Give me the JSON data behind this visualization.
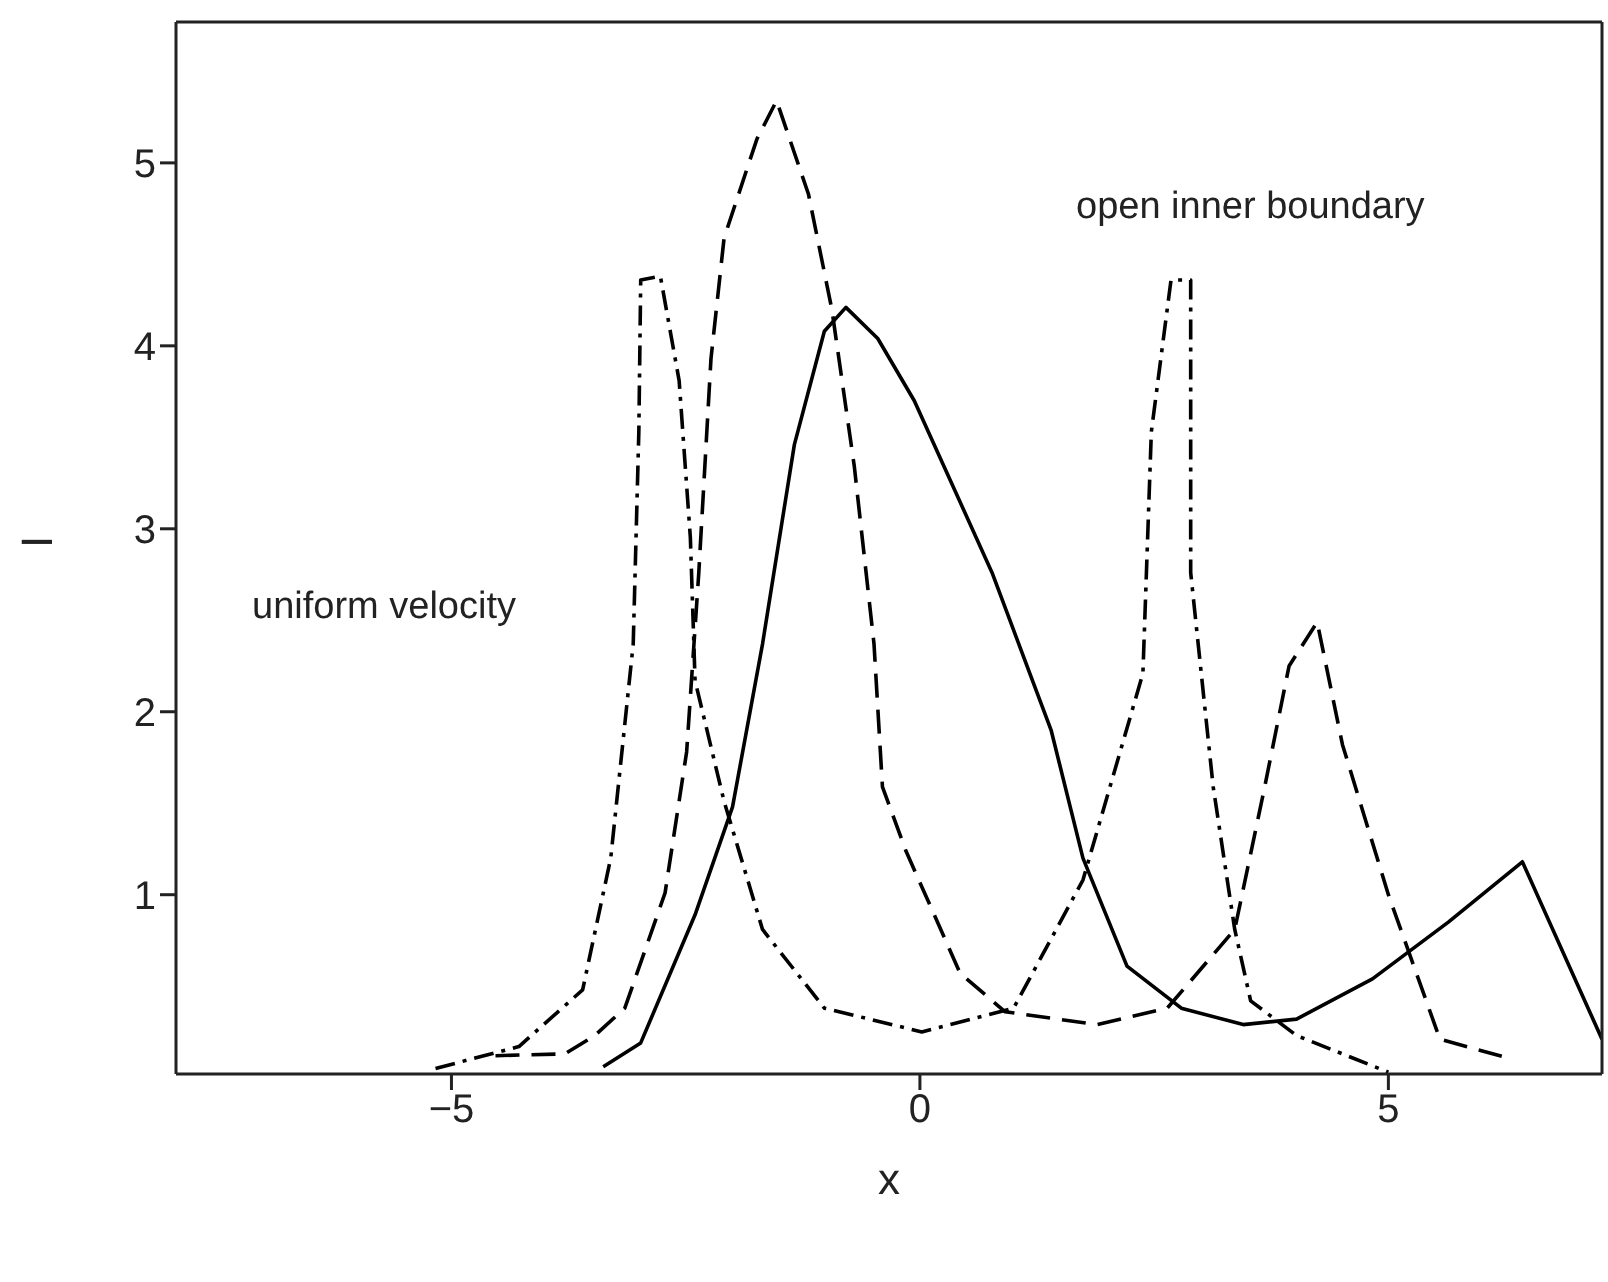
{
  "chart_data": {
    "type": "line",
    "xlabel": "x",
    "ylabel": "I",
    "xlim": [
      -7.94,
      7.28
    ],
    "xticks": [
      -5,
      0,
      5
    ],
    "ylim": [
      0.02,
      5.77
    ],
    "yticks": [
      1,
      2,
      3,
      4,
      5
    ],
    "marker": "none",
    "annotations": [
      "uniform velocity",
      "open inner boundary"
    ],
    "series": [
      {
        "color": "#000000",
        "line_style": "solid",
        "x": [
          -3.38,
          -2.98,
          -2.4,
          -2.0,
          -1.68,
          -1.34,
          -1.02,
          -0.79,
          -0.45,
          -0.06,
          0.77,
          1.4,
          1.74,
          2.21,
          2.79,
          3.45,
          4.02,
          4.83,
          5.64,
          6.43,
          7.28
        ],
        "values": [
          0.06,
          0.19,
          0.89,
          1.48,
          2.37,
          3.46,
          4.08,
          4.21,
          4.04,
          3.7,
          2.76,
          1.9,
          1.2,
          0.61,
          0.38,
          0.29,
          0.32,
          0.54,
          0.85,
          1.18,
          0.21
        ]
      },
      {
        "color": "#000000",
        "line_style": "dashed",
        "x": [
          -4.53,
          -3.79,
          -3.47,
          -3.15,
          -2.72,
          -2.49,
          -2.36,
          -2.23,
          -2.09,
          -1.74,
          -1.53,
          -1.19,
          -0.94,
          -0.7,
          -0.49,
          -0.4,
          -0.15,
          0.43,
          0.91,
          1.89,
          2.64,
          3.36,
          3.68,
          3.94,
          4.24,
          4.51,
          5.0,
          5.55,
          6.26
        ],
        "values": [
          0.12,
          0.13,
          0.23,
          0.38,
          1.01,
          1.78,
          2.76,
          3.93,
          4.59,
          5.13,
          5.34,
          4.83,
          4.2,
          3.34,
          2.37,
          1.59,
          1.24,
          0.57,
          0.36,
          0.29,
          0.38,
          0.81,
          1.59,
          2.25,
          2.49,
          1.82,
          1.0,
          0.21,
          0.11
        ]
      },
      {
        "color": "#000000",
        "line_style": "dashdot",
        "x": [
          -5.17,
          -4.28,
          -3.6,
          -3.3,
          -3.06,
          -3.0,
          -2.98,
          -2.77,
          -2.57,
          -2.45,
          -2.4,
          -2.09,
          -1.68,
          -1.02,
          0.02,
          1.0,
          1.74,
          2.38,
          2.47,
          2.68,
          2.89,
          2.89,
          3.13,
          3.36,
          3.53,
          4.02,
          5.0
        ],
        "values": [
          0.05,
          0.17,
          0.48,
          1.2,
          2.37,
          3.53,
          4.36,
          4.38,
          3.81,
          2.95,
          2.17,
          1.51,
          0.81,
          0.38,
          0.25,
          0.38,
          1.08,
          2.21,
          3.53,
          4.36,
          4.36,
          2.76,
          1.59,
          0.81,
          0.42,
          0.23,
          0.03
        ]
      }
    ]
  }
}
